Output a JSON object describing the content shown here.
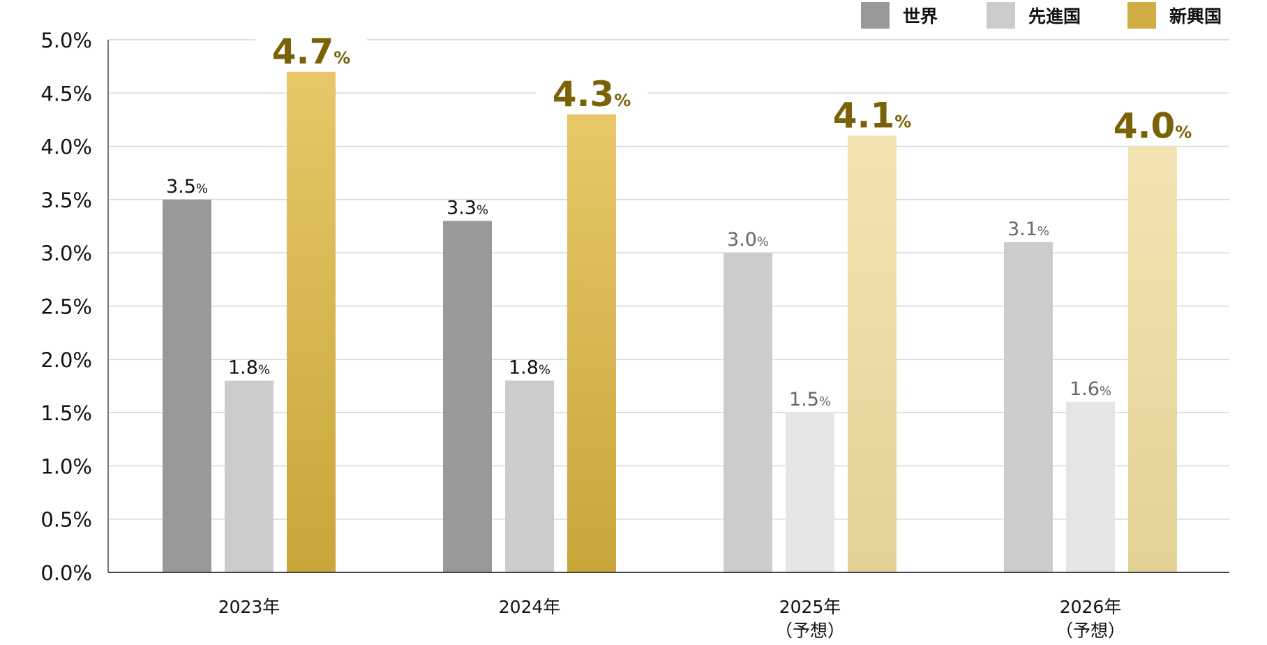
{
  "chart_data": {
    "type": "bar",
    "title": "",
    "xlabel": "",
    "ylabel": "",
    "ylim": [
      0,
      5.0
    ],
    "yticks": [
      "0.0%",
      "0.5%",
      "1.0%",
      "1.5%",
      "2.0%",
      "2.5%",
      "3.0%",
      "3.5%",
      "4.0%",
      "4.5%",
      "5.0%"
    ],
    "grid": true,
    "legend_position": "top-right",
    "categories": [
      {
        "line1": "2023年",
        "line2": "",
        "forecast": false
      },
      {
        "line1": "2024年",
        "line2": "",
        "forecast": false
      },
      {
        "line1": "2025年",
        "line2": "（予想）",
        "forecast": true
      },
      {
        "line1": "2026年",
        "line2": "（予想）",
        "forecast": true
      }
    ],
    "series": [
      {
        "name": "世界",
        "values": [
          3.5,
          3.3,
          3.0,
          3.1
        ],
        "labels": [
          "3.5",
          "3.3",
          "3.0",
          "3.1"
        ],
        "color": "#999999",
        "forecast_color": "#cccccc"
      },
      {
        "name": "先進国",
        "values": [
          1.8,
          1.8,
          1.5,
          1.6
        ],
        "labels": [
          "1.8",
          "1.8",
          "1.5",
          "1.6"
        ],
        "color": "#cccccc",
        "forecast_color": "#e5e5e5"
      },
      {
        "name": "新興国",
        "values": [
          4.7,
          4.3,
          4.1,
          4.0
        ],
        "labels": [
          "4.7",
          "4.3",
          "4.1",
          "4.0"
        ],
        "color": "#d1ad45",
        "forecast_color": "#ecdca6"
      }
    ],
    "unit": "%",
    "colors": {
      "emerging_label": "#7a6208",
      "forecast_label": "#666666",
      "actual_label": "#111111"
    }
  }
}
